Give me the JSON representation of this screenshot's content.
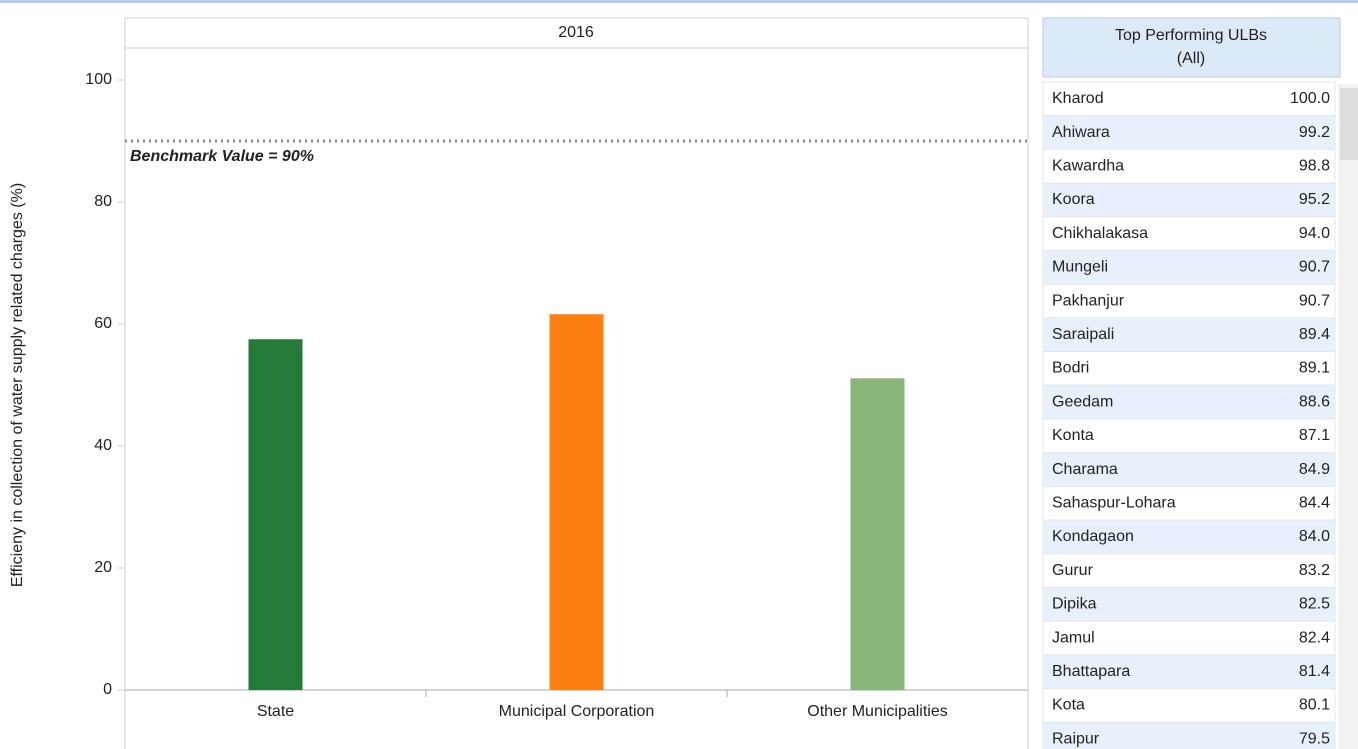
{
  "chart_data": {
    "type": "bar",
    "header": "2016",
    "y_label": "Efficieny in collection of water supply related charges (%)",
    "categories": [
      "State",
      "Municipal Corporation",
      "Other Municipalities"
    ],
    "values": [
      57.5,
      61.6,
      51.1
    ],
    "colors": [
      "#247b37",
      "#fd7f0f",
      "#87b57a"
    ],
    "ylim": [
      0,
      100
    ],
    "yticks": [
      0,
      20,
      40,
      60,
      80,
      100
    ],
    "benchmark": {
      "value": 90,
      "label": "Benchmark Value = 90%"
    }
  },
  "table": {
    "title": "Top Performing ULBs",
    "subtitle": "(All)",
    "rows": [
      [
        "Kharod",
        "100.0"
      ],
      [
        "Ahiwara",
        "99.2"
      ],
      [
        "Kawardha",
        "98.8"
      ],
      [
        "Koora",
        "95.2"
      ],
      [
        "Chikhalakasa",
        "94.0"
      ],
      [
        "Mungeli",
        "90.7"
      ],
      [
        "Pakhanjur",
        "90.7"
      ],
      [
        "Saraipali",
        "89.4"
      ],
      [
        "Bodri",
        "89.1"
      ],
      [
        "Geedam",
        "88.6"
      ],
      [
        "Konta",
        "87.1"
      ],
      [
        "Charama",
        "84.9"
      ],
      [
        "Sahaspur-Lohara",
        "84.4"
      ],
      [
        "Kondagaon",
        "84.0"
      ],
      [
        "Gurur",
        "83.2"
      ],
      [
        "Dipika",
        "82.5"
      ],
      [
        "Jamul",
        "82.4"
      ],
      [
        "Bhattapara",
        "81.4"
      ],
      [
        "Kota",
        "80.1"
      ],
      [
        "Raipur",
        "79.5"
      ]
    ]
  }
}
